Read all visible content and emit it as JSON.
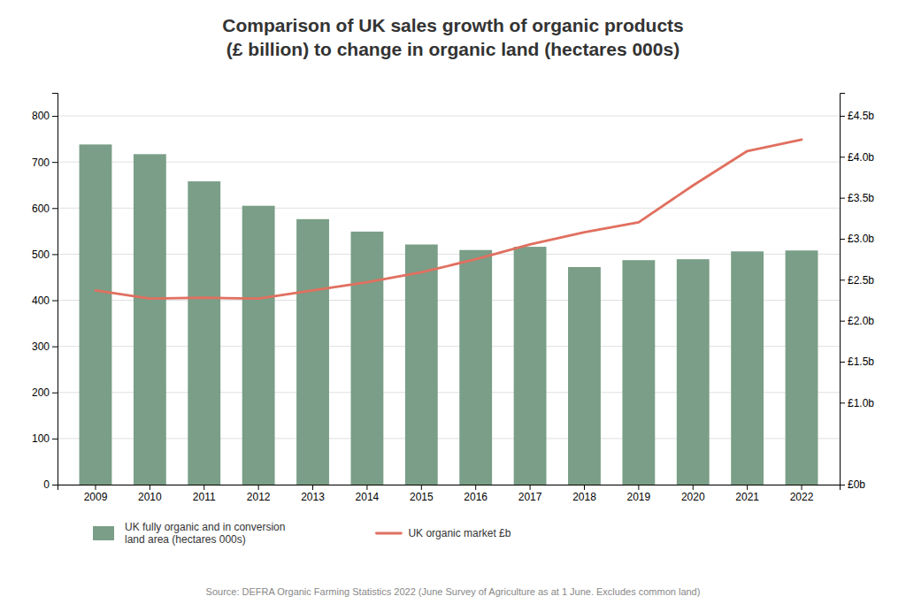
{
  "chart_data": {
    "type": "bar",
    "title": "Comparison of UK sales growth of organic products\n(£ billion) to change in organic land (hectares 000s)",
    "categories": [
      "2009",
      "2010",
      "2011",
      "2012",
      "2013",
      "2014",
      "2015",
      "2016",
      "2017",
      "2018",
      "2019",
      "2020",
      "2021",
      "2022"
    ],
    "series": [
      {
        "name": "UK fully organic and in conversion\nland area (hectares 000s)",
        "type": "bar",
        "color": "#7a9e87",
        "values": [
          738,
          717,
          658,
          605,
          576,
          549,
          521,
          509,
          516,
          472,
          487,
          489,
          506,
          508
        ]
      },
      {
        "name": "UK organic market £b",
        "type": "line",
        "color": "#e07060",
        "axis": "y2",
        "values": [
          2.37,
          2.27,
          2.28,
          2.27,
          2.37,
          2.47,
          2.59,
          2.75,
          2.93,
          3.08,
          3.2,
          3.65,
          4.07,
          4.21
        ]
      }
    ],
    "ylim": [
      0,
      850
    ],
    "yticks": [
      0,
      100,
      200,
      300,
      400,
      500,
      600,
      700,
      800
    ],
    "y2lim": [
      0,
      4.78
    ],
    "y2ticks": [
      {
        "value": 0.0,
        "label": "£0b"
      },
      {
        "value": 1.0,
        "label": "£1.0b"
      },
      {
        "value": 1.5,
        "label": "£1.5b"
      },
      {
        "value": 2.0,
        "label": "£2.0b"
      },
      {
        "value": 2.5,
        "label": "£2.5b"
      },
      {
        "value": 3.0,
        "label": "£3.0b"
      },
      {
        "value": 3.5,
        "label": "£3.5b"
      },
      {
        "value": 4.0,
        "label": "£4.0b"
      },
      {
        "value": 4.5,
        "label": "£4.5b"
      }
    ],
    "grid": true,
    "legend": "bottom",
    "annotations": [
      "Source: DEFRA Organic Farming Statistics 2022 (June Survey of Agriculture as at 1 June. Excludes common land)"
    ]
  }
}
